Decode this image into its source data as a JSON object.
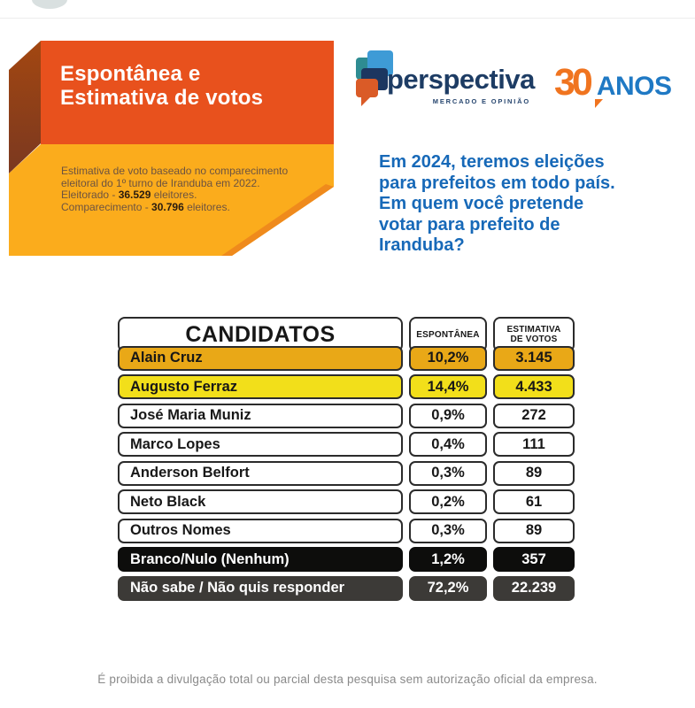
{
  "banner": {
    "title_line1": "Espontânea e",
    "title_line2": "Estimativa de votos",
    "note_line1": "Estimativa de voto baseado no comparecimento",
    "note_line2": "eleitoral do 1º turno de Iranduba em 2022.",
    "note_line3_prefix": "Eleitorado - ",
    "note_line3_bold": "36.529",
    "note_line3_suffix": " eleitores.",
    "note_line4_prefix": "Comparecimento - ",
    "note_line4_bold": "30.796",
    "note_line4_suffix": " eleitores.",
    "colors": {
      "orange": "#E8511D",
      "yellow": "#FBAC1C",
      "fold_brown": "#8F3F18"
    }
  },
  "logo": {
    "brand": "perspectiva",
    "tagline": "MERCADO E OPINIÃO",
    "icon": "speech-bubbles-icon",
    "colors": {
      "navy": "#1D3C64",
      "blue": "#3E9BD6",
      "teal": "#2E8C92",
      "orange": "#DA5B27"
    }
  },
  "anniversary": {
    "number": "30",
    "label": "ANOS",
    "colors": {
      "number_orange": "#F0741F",
      "label_blue": "#1F79C4"
    }
  },
  "question": {
    "text": "Em 2024, teremos eleições\npara prefeitos em todo país.\nEm quem você pretende\nvotar para prefeito de\nIranduba?",
    "color": "#1769B8"
  },
  "table": {
    "headers": {
      "candidates": "CANDIDATOS",
      "espontanea": "ESPONTÂNEA",
      "estimativa": "ESTIMATIVA\nDE VOTOS"
    },
    "rows": [
      {
        "name": "Alain Cruz",
        "espontanea": "10,2%",
        "estimativa": "3.145",
        "style": "amber"
      },
      {
        "name": "Augusto Ferraz",
        "espontanea": "14,4%",
        "estimativa": "4.433",
        "style": "yellow"
      },
      {
        "name": "José Maria Muniz",
        "espontanea": "0,9%",
        "estimativa": "272",
        "style": "white"
      },
      {
        "name": "Marco Lopes",
        "espontanea": "0,4%",
        "estimativa": "111",
        "style": "white"
      },
      {
        "name": "Anderson Belfort",
        "espontanea": "0,3%",
        "estimativa": "89",
        "style": "white"
      },
      {
        "name": "Neto Black",
        "espontanea": "0,2%",
        "estimativa": "61",
        "style": "white"
      },
      {
        "name": "Outros Nomes",
        "espontanea": "0,3%",
        "estimativa": "89",
        "style": "white"
      },
      {
        "name": "Branco/Nulo (Nenhum)",
        "espontanea": "1,2%",
        "estimativa": "357",
        "style": "black"
      },
      {
        "name": "Não sabe / Não quis responder",
        "espontanea": "72,2%",
        "estimativa": "22.239",
        "style": "dark"
      }
    ]
  },
  "footer": {
    "disclaimer": "É proibida a divulgação total ou parcial desta pesquisa sem autorização oficial da empresa."
  },
  "chart_data": {
    "type": "table",
    "title": "Espontânea e Estimativa de votos",
    "subtitle": "Estimativa de voto baseado no comparecimento eleitoral do 1º turno de Iranduba em 2022. Eleitorado - 36.529 eleitores. Comparecimento - 30.796 eleitores.",
    "question": "Em 2024, teremos eleições para prefeitos em todo país. Em quem você pretende votar para prefeito de Iranduba?",
    "columns": [
      "CANDIDATOS",
      "ESPONTÂNEA",
      "ESTIMATIVA DE VOTOS"
    ],
    "categories": [
      "Alain Cruz",
      "Augusto Ferraz",
      "José Maria Muniz",
      "Marco Lopes",
      "Anderson Belfort",
      "Neto Black",
      "Outros Nomes",
      "Branco/Nulo (Nenhum)",
      "Não sabe / Não quis responder"
    ],
    "series": [
      {
        "name": "Espontânea (%)",
        "values": [
          10.2,
          14.4,
          0.9,
          0.4,
          0.3,
          0.2,
          0.3,
          1.2,
          72.2
        ]
      },
      {
        "name": "Estimativa de votos",
        "values": [
          3145,
          4433,
          272,
          111,
          89,
          61,
          89,
          357,
          22239
        ]
      }
    ]
  }
}
